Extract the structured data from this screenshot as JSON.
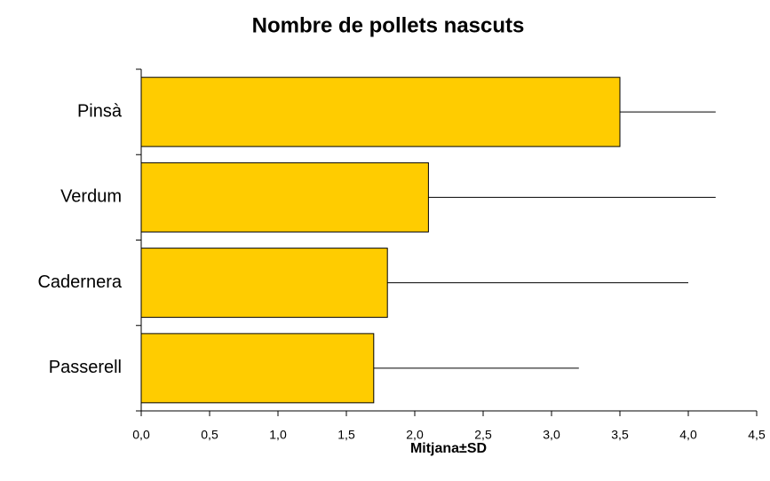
{
  "chart_data": {
    "type": "bar",
    "orientation": "horizontal",
    "title": "Nombre de pollets nascuts",
    "xlabel": "Mitjana±SD",
    "categories": [
      "Pinsà",
      "Verdum",
      "Cadernera",
      "Passerell"
    ],
    "values": [
      3.5,
      2.1,
      1.8,
      1.7
    ],
    "errors": [
      0.7,
      2.1,
      2.2,
      1.5
    ],
    "color": "#ffcc00",
    "xlim": [
      0,
      4.5
    ],
    "xticks": [
      {
        "value": 0,
        "label": "0,0"
      },
      {
        "value": 0.5,
        "label": "0,5"
      },
      {
        "value": 1,
        "label": "1,0"
      },
      {
        "value": 1.5,
        "label": "1,5"
      },
      {
        "value": 2,
        "label": "2,0"
      },
      {
        "value": 2.5,
        "label": "2,5"
      },
      {
        "value": 3,
        "label": "3,0"
      },
      {
        "value": 3.5,
        "label": "3,5"
      },
      {
        "value": 4,
        "label": "4,0"
      },
      {
        "value": 4.5,
        "label": "4,5"
      }
    ],
    "grid": false
  }
}
